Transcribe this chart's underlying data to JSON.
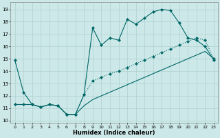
{
  "xlabel": "Humidex (Indice chaleur)",
  "bg_color": "#cce8e8",
  "grid_color": "#b0d0d0",
  "line_color": "#006666",
  "xlim": [
    -0.5,
    23.5
  ],
  "ylim": [
    9.8,
    19.6
  ],
  "xticks": [
    0,
    1,
    2,
    3,
    4,
    5,
    6,
    7,
    8,
    9,
    10,
    11,
    12,
    13,
    14,
    15,
    16,
    17,
    18,
    19,
    20,
    21,
    22,
    23
  ],
  "yticks": [
    10,
    11,
    12,
    13,
    14,
    15,
    16,
    17,
    18,
    19
  ],
  "line1_x": [
    0,
    1,
    2,
    3,
    4,
    5,
    6,
    7,
    8,
    9,
    10,
    11,
    12,
    13,
    14,
    15,
    16,
    17,
    18,
    19,
    20,
    21,
    22,
    23
  ],
  "line1_y": [
    14.9,
    12.3,
    11.3,
    11.1,
    11.3,
    11.2,
    10.5,
    10.5,
    12.1,
    17.5,
    16.1,
    16.7,
    16.5,
    18.2,
    17.8,
    18.3,
    18.8,
    19.0,
    18.9,
    17.9,
    16.7,
    16.5,
    16.0,
    14.9
  ],
  "line2_x": [
    0,
    1,
    2,
    3,
    4,
    5,
    6,
    7,
    8,
    9,
    10,
    11,
    12,
    13,
    14,
    15,
    16,
    17,
    18,
    19,
    20,
    21,
    22,
    23
  ],
  "line2_y": [
    11.3,
    11.3,
    11.3,
    11.1,
    11.3,
    11.2,
    10.5,
    10.5,
    12.1,
    13.2,
    13.5,
    13.8,
    14.0,
    14.3,
    14.6,
    14.9,
    15.2,
    15.5,
    15.8,
    16.1,
    16.4,
    16.7,
    16.5,
    15.0
  ],
  "line3_x": [
    0,
    1,
    2,
    3,
    4,
    5,
    6,
    7,
    8,
    9,
    10,
    11,
    12,
    13,
    14,
    15,
    16,
    17,
    18,
    19,
    20,
    21,
    22,
    23
  ],
  "line3_y": [
    11.3,
    11.3,
    11.3,
    11.1,
    11.3,
    11.2,
    10.5,
    10.5,
    11.2,
    11.7,
    12.0,
    12.3,
    12.6,
    12.9,
    13.2,
    13.5,
    13.8,
    14.1,
    14.4,
    14.7,
    15.0,
    15.3,
    15.6,
    15.0
  ]
}
